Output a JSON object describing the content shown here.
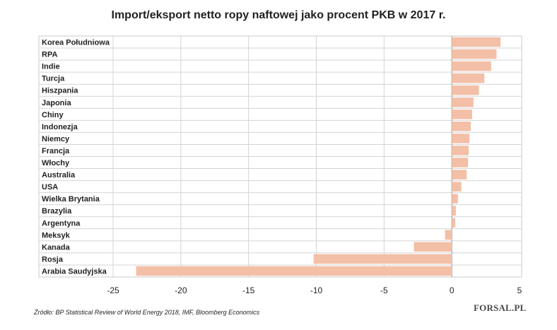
{
  "chart_data": {
    "type": "bar",
    "orientation": "horizontal",
    "title": "Import/eksport netto ropy naftowej jako procent PKB w 2017 r.",
    "categories": [
      "Korea Południowa",
      "RPA",
      "Indie",
      "Turcja",
      "Hiszpania",
      "Japonia",
      "Chiny",
      "Indonezja",
      "Niemcy",
      "Francja",
      "Włochy",
      "Australia",
      "USA",
      "Wielka Brytania",
      "Brazylia",
      "Argentyna",
      "Meksyk",
      "Kanada",
      "Rosja",
      "Arabia Saudyjska"
    ],
    "values": [
      3.6,
      3.3,
      2.9,
      2.4,
      2.0,
      1.6,
      1.5,
      1.4,
      1.3,
      1.25,
      1.2,
      1.1,
      0.7,
      0.45,
      0.3,
      0.25,
      -0.5,
      -2.8,
      -10.2,
      -23.3
    ],
    "xlim": [
      -25,
      5
    ],
    "xticks": [
      -25,
      -20,
      -15,
      -10,
      -5,
      0,
      5
    ],
    "tick_labels": [
      "-25",
      "-20",
      "-15",
      "-10",
      "-5",
      "0",
      "5"
    ],
    "grid": true,
    "bar_color": "#f3bfa7"
  },
  "footer": {
    "source": "Źródło: BP Statistical Review of World Energy 2018, IMF, Bloomberg Economics",
    "logo": "FORSAL.PL"
  }
}
